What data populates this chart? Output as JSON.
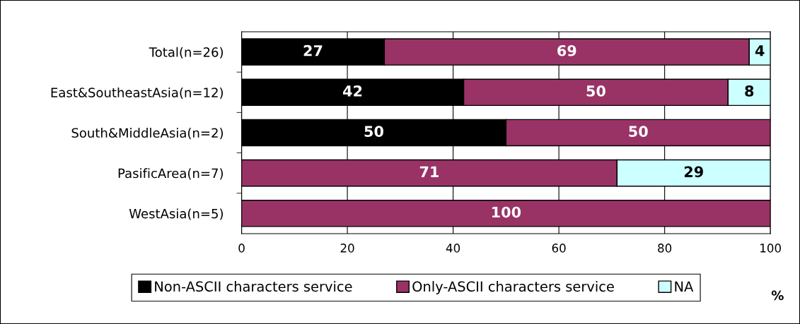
{
  "chart_data": {
    "type": "bar",
    "orientation": "horizontal",
    "stacked": true,
    "categories": [
      "Total(n=26)",
      "East&SoutheastAsia(n=12)",
      "South&MiddleAsia(n=2)",
      "PasificArea(n=7)",
      "WestAsia(n=5)"
    ],
    "series": [
      {
        "name": "Non-ASCII characters service",
        "color": "#000000",
        "values": [
          27,
          42,
          50,
          null,
          null
        ]
      },
      {
        "name": "Only-ASCII characters service",
        "color": "#993366",
        "values": [
          69,
          50,
          50,
          71,
          100
        ]
      },
      {
        "name": "NA",
        "color": "#ccffff",
        "values": [
          4,
          8,
          null,
          29,
          null
        ]
      }
    ],
    "xlim": [
      0,
      100
    ],
    "xticks": [
      0,
      20,
      40,
      60,
      80,
      100
    ],
    "xlabel": "%",
    "grid": "x",
    "legend": "bottom",
    "data_labels": true
  }
}
